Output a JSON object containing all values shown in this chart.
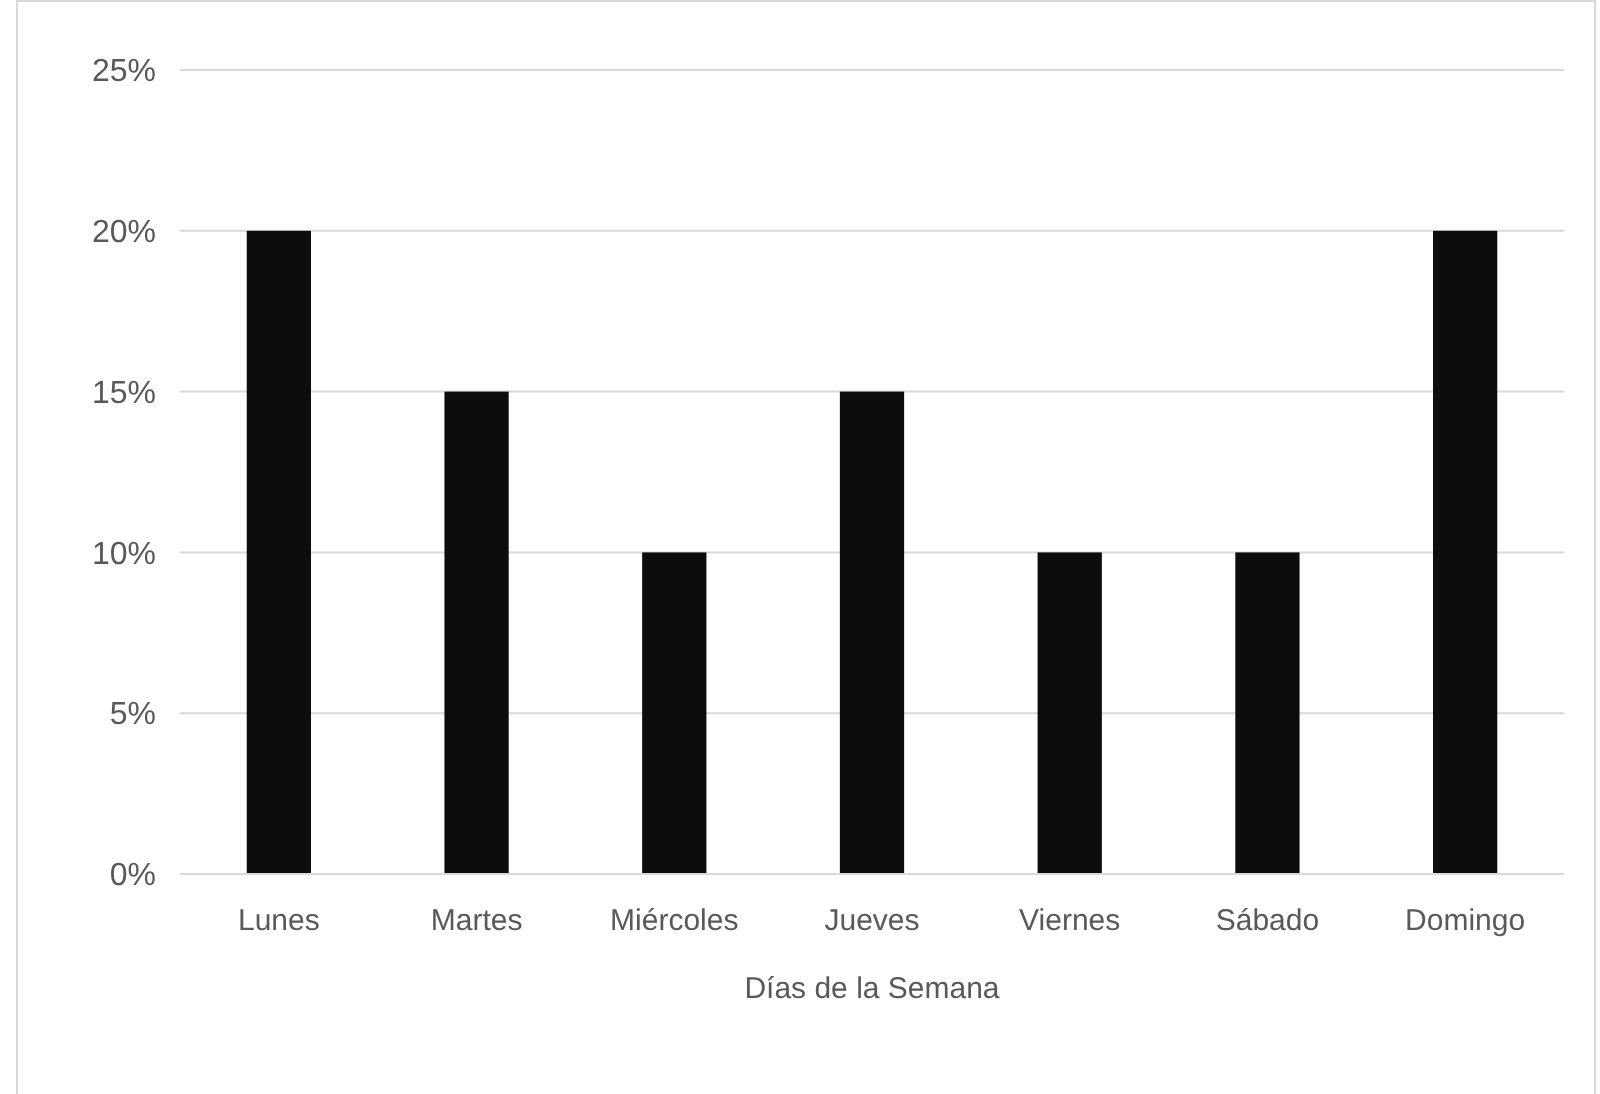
{
  "chart_data": {
    "type": "bar",
    "xlabel": "Días de la Semana",
    "categories": [
      "Lunes",
      "Martes",
      "Miércoles",
      "Jueves",
      "Viernes",
      "Sábado",
      "Domingo"
    ],
    "values": [
      20,
      15,
      10,
      15,
      10,
      10,
      20
    ],
    "color": "#0d0d0d",
    "ylim": [
      0,
      25
    ],
    "yticks": [
      {
        "value": 0,
        "label": "0%"
      },
      {
        "value": 5,
        "label": "5%"
      },
      {
        "value": 10,
        "label": "10%"
      },
      {
        "value": 15,
        "label": "15%"
      },
      {
        "value": 20,
        "label": "20%"
      },
      {
        "value": 25,
        "label": "25%"
      }
    ],
    "grid": "y"
  }
}
